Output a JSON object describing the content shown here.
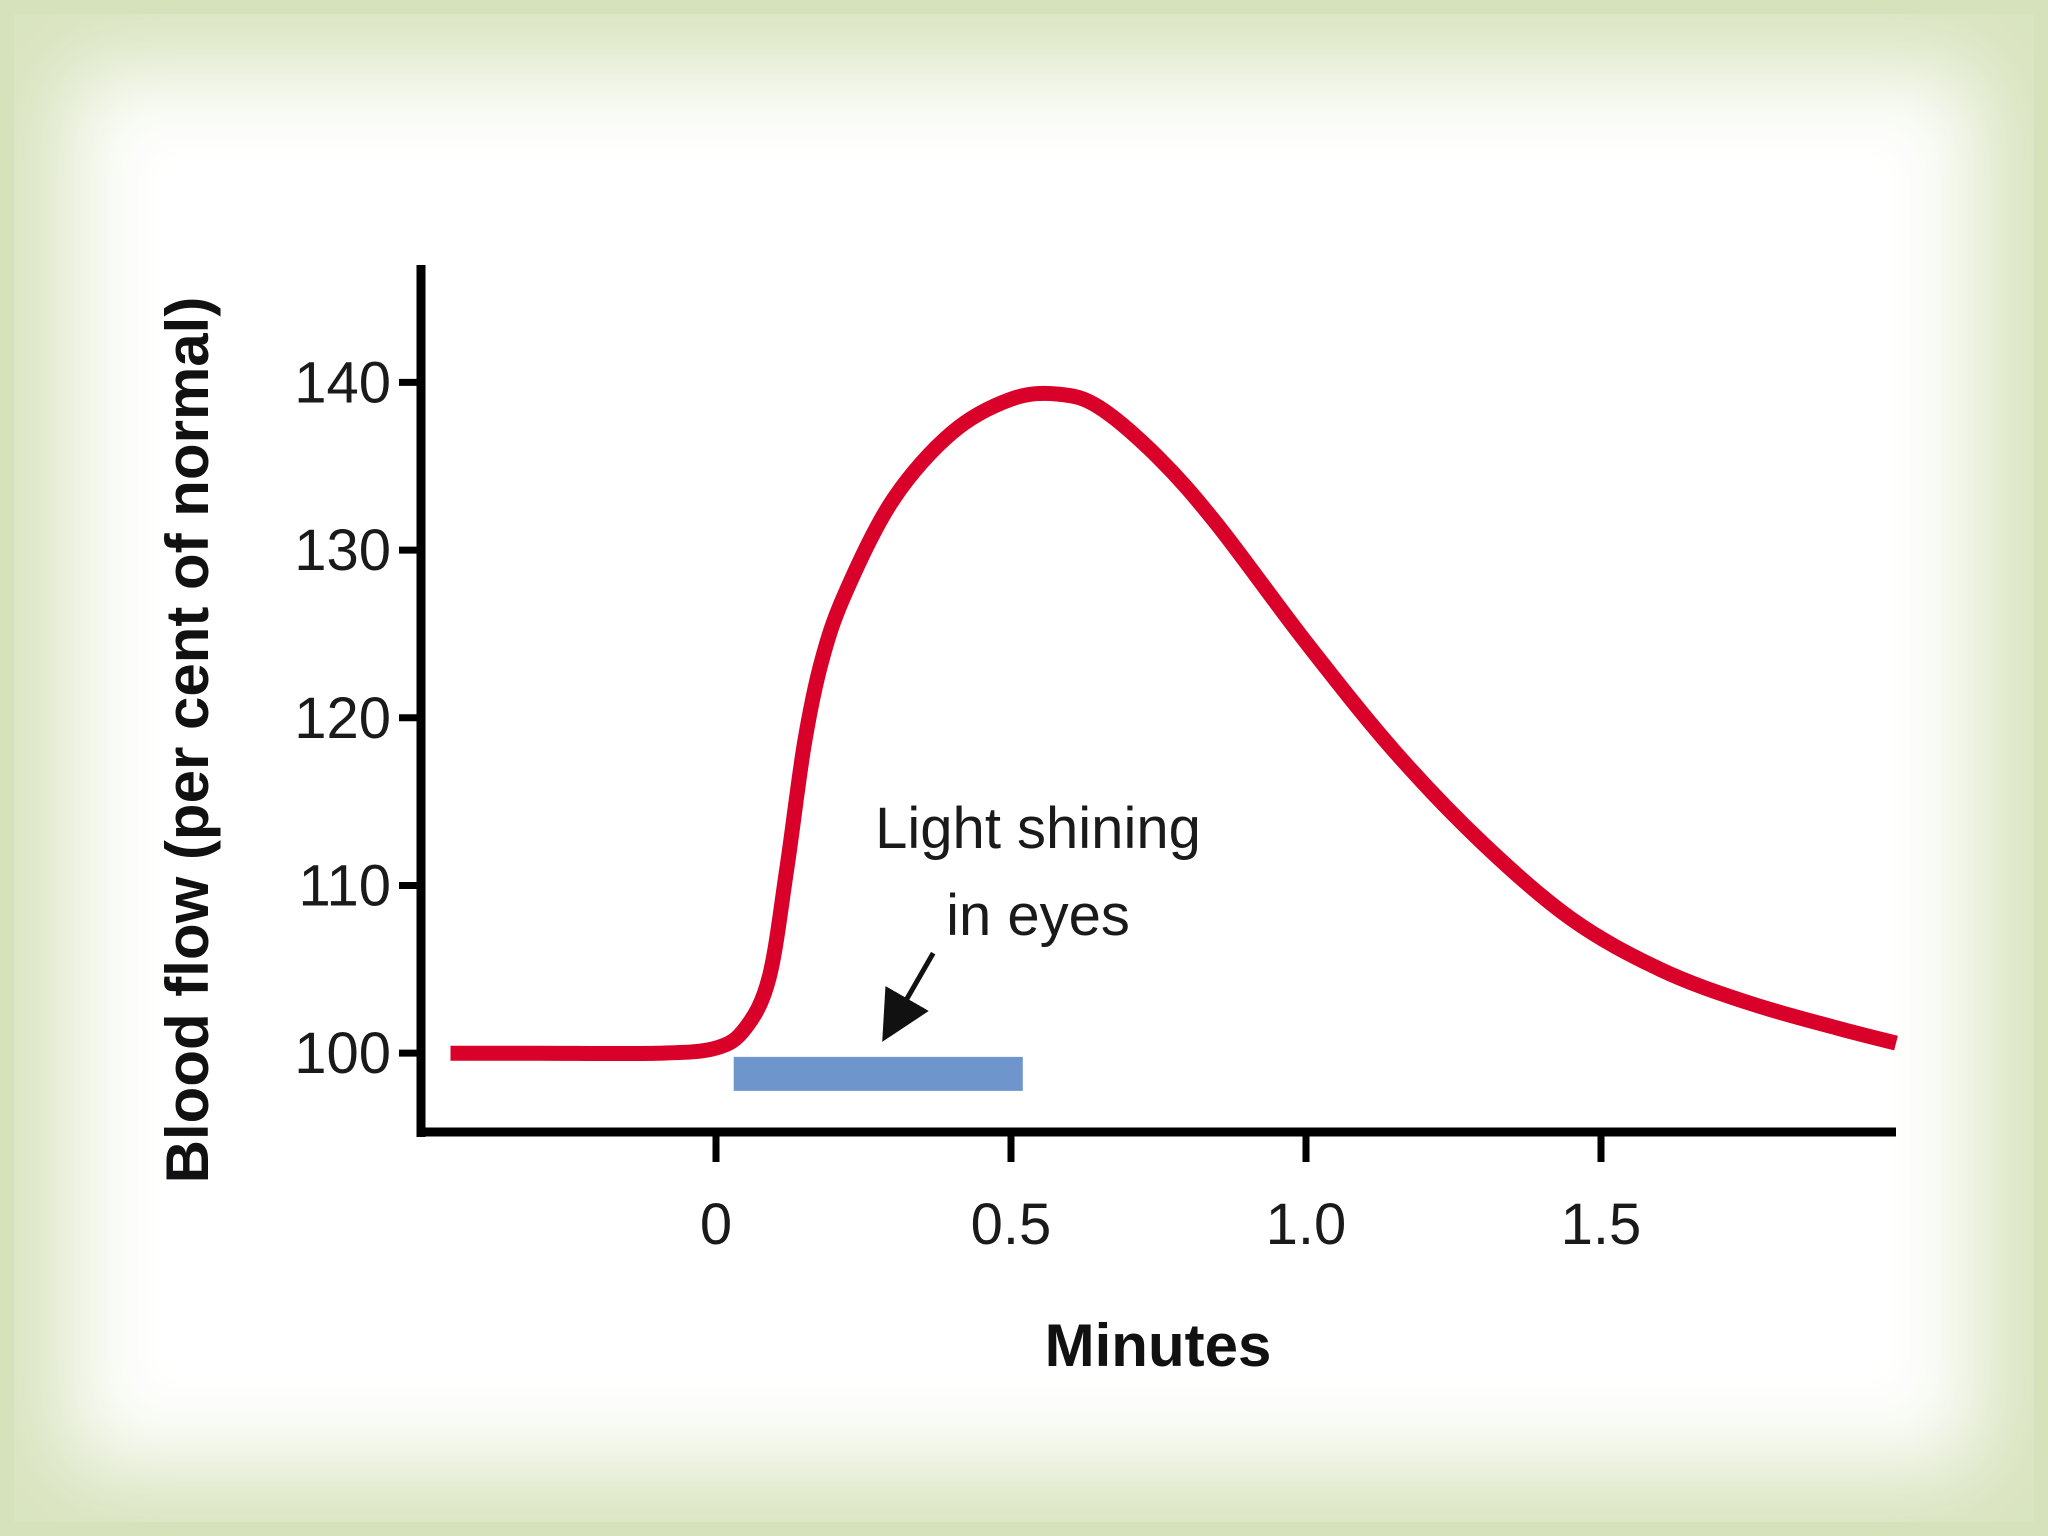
{
  "chart_data": {
    "type": "line",
    "xlabel": "Minutes",
    "ylabel": "Blood flow (per cent of normal)",
    "xlim": [
      -0.5,
      2.0
    ],
    "ylim": [
      95,
      147
    ],
    "x_ticks": [
      "0",
      "0.5",
      "1.0",
      "1.5"
    ],
    "x_tick_values": [
      0,
      0.5,
      1.0,
      1.5
    ],
    "y_ticks": [
      "100",
      "110",
      "120",
      "130",
      "140"
    ],
    "y_tick_values": [
      100,
      110,
      120,
      130,
      140
    ],
    "grid": false,
    "series": [
      {
        "color": "#d9002a",
        "points": [
          [
            -0.45,
            100
          ],
          [
            -0.3,
            100
          ],
          [
            -0.1,
            100
          ],
          [
            0.0,
            100.3
          ],
          [
            0.05,
            101.5
          ],
          [
            0.09,
            104.5
          ],
          [
            0.12,
            111
          ],
          [
            0.15,
            118.5
          ],
          [
            0.18,
            123.5
          ],
          [
            0.22,
            127.5
          ],
          [
            0.3,
            133
          ],
          [
            0.4,
            137
          ],
          [
            0.5,
            139
          ],
          [
            0.58,
            139.3
          ],
          [
            0.65,
            138.5
          ],
          [
            0.75,
            135.5
          ],
          [
            0.85,
            131.5
          ],
          [
            1.0,
            124.5
          ],
          [
            1.15,
            118
          ],
          [
            1.3,
            112.5
          ],
          [
            1.45,
            108
          ],
          [
            1.6,
            105
          ],
          [
            1.75,
            103
          ],
          [
            1.9,
            101.5
          ],
          [
            2.0,
            100.6
          ]
        ]
      }
    ],
    "stimulus_bar": {
      "x_start": 0.03,
      "x_end": 0.52,
      "y": 99,
      "color": "#6f96cc"
    },
    "annotation": {
      "lines": [
        "Light shining",
        "in eyes"
      ],
      "arrow_to": [
        0.28,
        100
      ]
    }
  }
}
